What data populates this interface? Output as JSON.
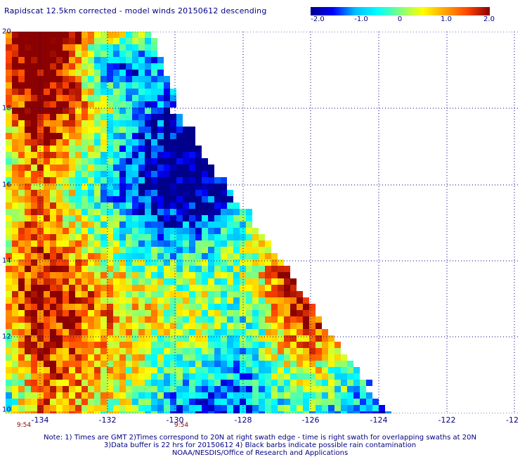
{
  "title": "Rapidscat 12.5km corrected - model winds 20150612 descending",
  "colorbar": {
    "tick_labels": [
      "-2.0",
      "-1.0",
      "0",
      "1.0",
      "2.0"
    ],
    "min": -2.0,
    "max": 2.0,
    "colors": [
      "#00008b",
      "#0000ff",
      "#00bfff",
      "#00ffff",
      "#7fff7f",
      "#ffff00",
      "#ffa500",
      "#ff4500",
      "#8b0000"
    ]
  },
  "map": {
    "lat_labels": [
      "20",
      "18",
      "16",
      "14",
      "12",
      "10"
    ],
    "lon_labels": [
      "-134",
      "-132",
      "-130",
      "-128",
      "-126",
      "-124",
      "-122",
      "-12"
    ],
    "time_labels": [
      "9:54",
      "9:54"
    ],
    "lat_range": [
      10,
      20
    ],
    "lon_range": [
      -135,
      -120
    ],
    "grid": true,
    "grid_color": "#000080"
  },
  "notes": {
    "line1": "Note: 1) Times are GMT 2)Times correspond to 20N at right swath edge - time is right swath for overlapping swaths at 20N",
    "line2": "3)Data buffer is 22 hrs for 20150612 4) Black barbs indicate possible rain contamination",
    "line3": "NOAA/NESDIS/Office of Research and Applications"
  }
}
